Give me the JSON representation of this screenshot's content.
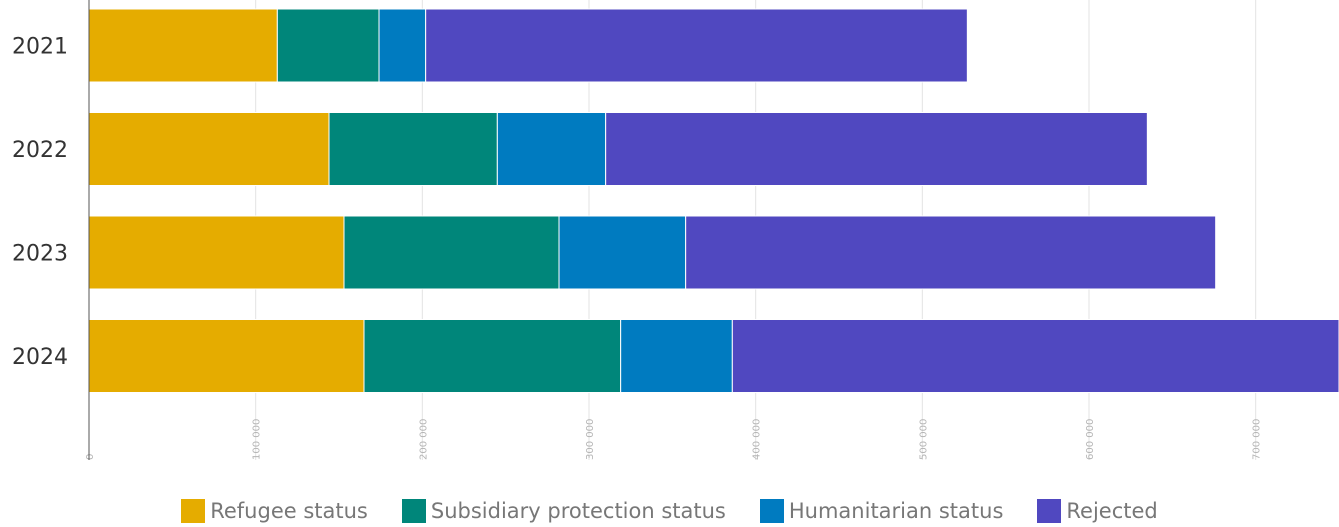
{
  "chart_data": {
    "type": "bar",
    "orientation": "horizontal",
    "stacked": true,
    "categories": [
      "2021",
      "2022",
      "2023",
      "2024"
    ],
    "series": [
      {
        "name": "Refugee status",
        "color": "#E5AC00",
        "values": [
          113000,
          144000,
          153000,
          165000
        ]
      },
      {
        "name": "Subsidiary protection status",
        "color": "#00867A",
        "values": [
          61000,
          101000,
          129000,
          154000
        ]
      },
      {
        "name": "Humanitarian status",
        "color": "#007BC0",
        "values": [
          28000,
          65000,
          76000,
          67000
        ]
      },
      {
        "name": "Rejected",
        "color": "#5048C0",
        "values": [
          325000,
          325000,
          318000,
          364000
        ]
      }
    ],
    "xlim": [
      0,
      750000
    ],
    "xticks": [
      "0",
      "100 000",
      "200 000",
      "300 000",
      "400 000",
      "500 000",
      "600 000",
      "700 000"
    ],
    "grid": true,
    "legend_position": "bottom"
  }
}
